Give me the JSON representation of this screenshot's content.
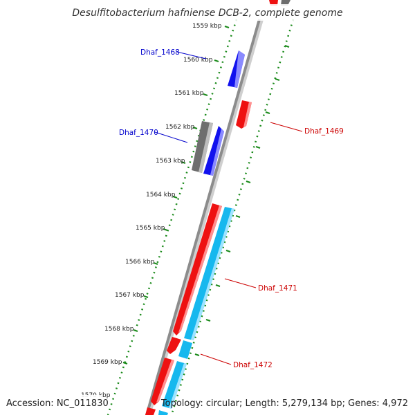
{
  "title": "Desulfitobacterium hafniense DCB-2, complete genome",
  "footer": {
    "accession": "Accession: NC_011830",
    "summary": "Topology: circular; Length: 5,279,134 bp; Genes: 4,972"
  },
  "ticks": [
    "1559 kbp",
    "1560 kbp",
    "1561 kbp",
    "1562 kbp",
    "1563 kbp",
    "1564 kbp",
    "1565 kbp",
    "1566 kbp",
    "1567 kbp",
    "1568 kbp",
    "1569 kbp",
    "1570 kbp"
  ],
  "gene_labels": [
    {
      "name": "Dhaf_1468",
      "color": "#0000cc"
    },
    {
      "name": "Dhaf_1470",
      "color": "#0000cc"
    },
    {
      "name": "Dhaf_1469",
      "color": "#cc0000"
    },
    {
      "name": "Dhaf_1471",
      "color": "#cc0000"
    },
    {
      "name": "Dhaf_1472",
      "color": "#cc0000"
    }
  ],
  "colors": {
    "backbone": "#8c8c8c",
    "tick_dots": "#1a8a1a",
    "cds_forward": "#ee1111",
    "cds_reverse": "#1111ee",
    "rna": "#16b8ee",
    "other": "#6e6e6e"
  }
}
